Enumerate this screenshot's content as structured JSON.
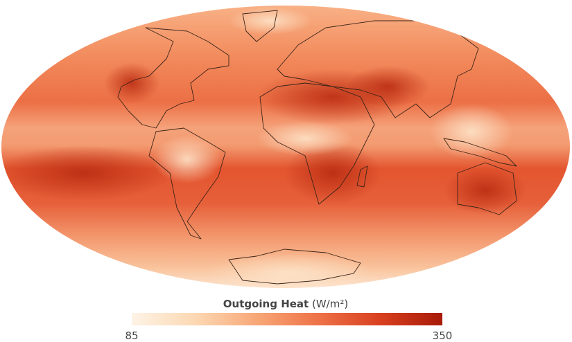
{
  "map": {
    "title": "Outgoing Heat",
    "unit": "(W/m²)",
    "colorbar": {
      "min": 85,
      "max": 350,
      "colors": [
        "#fdf3e6",
        "#fcd9b4",
        "#f8a878",
        "#ee7248",
        "#d8401f",
        "#a81a08"
      ]
    }
  }
}
